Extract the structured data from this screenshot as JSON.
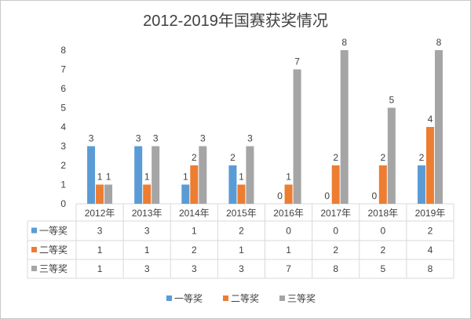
{
  "chart_data": {
    "type": "bar",
    "title": "2012-2019年国赛获奖情况",
    "categories": [
      "2012年",
      "2013年",
      "2014年",
      "2015年",
      "2016年",
      "2017年",
      "2018年",
      "2019年"
    ],
    "series": [
      {
        "name": "一等奖",
        "color": "#5b9bd5",
        "values": [
          3,
          3,
          1,
          2,
          0,
          0,
          0,
          2
        ]
      },
      {
        "name": "二等奖",
        "color": "#ed7d31",
        "values": [
          1,
          1,
          2,
          1,
          1,
          2,
          2,
          4
        ]
      },
      {
        "name": "三等奖",
        "color": "#a5a5a5",
        "values": [
          1,
          3,
          3,
          3,
          7,
          8,
          5,
          8
        ]
      }
    ],
    "ylim": [
      0,
      8
    ],
    "yticks": [
      0,
      1,
      2,
      3,
      4,
      5,
      6,
      7,
      8
    ],
    "xlabel": "",
    "ylabel": "",
    "grid": false,
    "legend": "bottom",
    "data_table": true
  }
}
